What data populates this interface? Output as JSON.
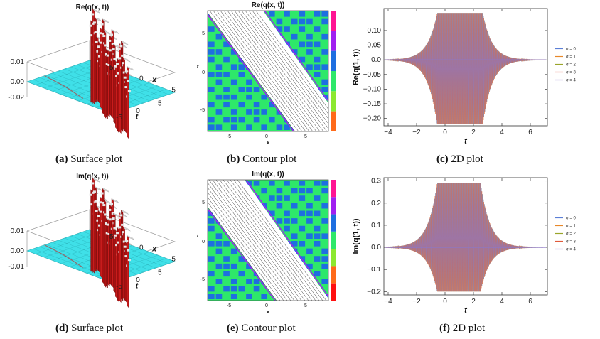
{
  "captions": [
    {
      "label": "(a)",
      "text": "Surface plot"
    },
    {
      "label": "(b)",
      "text": "Contour plot"
    },
    {
      "label": "(c)",
      "text": "2D plot"
    },
    {
      "label": "(d)",
      "text": "Surface plot"
    },
    {
      "label": "(e)",
      "text": "Contour plot"
    },
    {
      "label": "(f)",
      "text": "2D plot"
    }
  ],
  "chart_data": [
    {
      "id": "a",
      "type": "surface",
      "title": "Re(q(x, t))",
      "z_ticks": [
        "0.01",
        "0.00",
        "-0.02"
      ],
      "t_ticks": [
        "-5",
        "0",
        "5"
      ],
      "t_label": "t",
      "x_ticks": [
        "5",
        "0",
        "-5"
      ],
      "x_label": "x",
      "colors": {
        "plane": "#3fe0e8",
        "wave": "#c81c1c",
        "highlight": "#d8d8d8"
      }
    },
    {
      "id": "b",
      "type": "contour",
      "title": "Re(q(x, t))",
      "x_ticks": [
        "-5",
        "0",
        "5"
      ],
      "x_label": "x",
      "y_ticks": [
        "5",
        "0",
        "-5"
      ],
      "y_label": "t",
      "colorbar": [
        "#ff1493",
        "#a020f0",
        "#1e6fe0",
        "#2ee86a",
        "#8ce830",
        "#ff6a1a"
      ]
    },
    {
      "id": "c",
      "type": "line",
      "title": "",
      "ylabel": "Re(q(1, t))",
      "xlabel": "t",
      "x_ticks": [
        "-4",
        "-2",
        "0",
        "2",
        "4",
        "6"
      ],
      "xlim": [
        -4.3,
        7.2
      ],
      "y_ticks": [
        "0.10",
        "0.05",
        "0.0",
        "-0.05",
        "-0.10",
        "-0.15",
        "-0.20"
      ],
      "ylim": [
        -0.225,
        0.175
      ],
      "envelope": {
        "top": 0.16,
        "bottom": -0.22,
        "plateau": [
          -0.55,
          2.65
        ]
      },
      "series": [
        {
          "name": "σ = 0",
          "color": "#5b7fd6"
        },
        {
          "name": "σ = 1",
          "color": "#e8882a"
        },
        {
          "name": "σ = 2",
          "color": "#9aa52a"
        },
        {
          "name": "σ = 3",
          "color": "#e05a3a"
        },
        {
          "name": "σ = 4",
          "color": "#8c78c8"
        }
      ]
    },
    {
      "id": "d",
      "type": "surface",
      "title": "Im(q(x, t))",
      "z_ticks": [
        "0.01",
        "0.00",
        "-0.01"
      ],
      "t_ticks": [
        "-5",
        "0",
        "5"
      ],
      "t_label": "t",
      "x_ticks": [
        "5",
        "0",
        "-5"
      ],
      "x_label": "x",
      "colors": {
        "plane": "#3fe0e8",
        "wave": "#c81c1c",
        "highlight": "#d8d8d8"
      }
    },
    {
      "id": "e",
      "type": "contour",
      "title": "Im(q(x, t))",
      "x_ticks": [
        "-5",
        "0",
        "5"
      ],
      "x_label": "x",
      "y_ticks": [
        "5",
        "0",
        "-5"
      ],
      "y_label": "t",
      "colorbar": [
        "#ff1493",
        "#a020f0",
        "#1e6fe0",
        "#2ee86a",
        "#8ce830",
        "#ff6a1a",
        "#ff1010"
      ]
    },
    {
      "id": "f",
      "type": "line",
      "title": "",
      "ylabel": "Im(q(1, t))",
      "xlabel": "t",
      "x_ticks": [
        "-4",
        "-2",
        "0",
        "2",
        "4",
        "6"
      ],
      "xlim": [
        -4.3,
        7.2
      ],
      "y_ticks": [
        "0.3",
        "0.2",
        "0.1",
        "0.0",
        "-0.1",
        "-0.2"
      ],
      "ylim": [
        -0.215,
        0.315
      ],
      "envelope": {
        "top": 0.29,
        "bottom": -0.2,
        "plateau": [
          -0.55,
          2.5
        ]
      },
      "series": [
        {
          "name": "σ = 0",
          "color": "#5b7fd6"
        },
        {
          "name": "σ = 1",
          "color": "#e8882a"
        },
        {
          "name": "σ = 2",
          "color": "#9aa52a"
        },
        {
          "name": "σ = 3",
          "color": "#e05a3a"
        },
        {
          "name": "σ = 4",
          "color": "#8c78c8"
        }
      ]
    }
  ]
}
